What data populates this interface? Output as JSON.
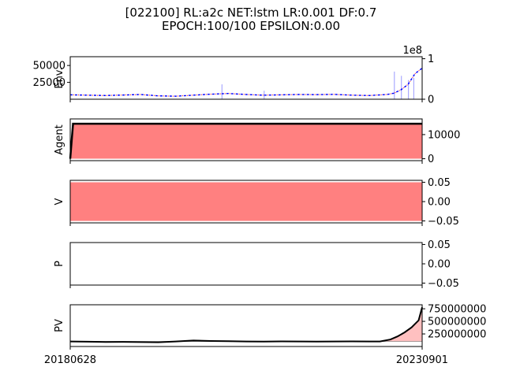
{
  "figure": {
    "title_line1": "[022100] RL:a2c NET:lstm LR:0.001 DF:0.7",
    "title_line2": "EPOCH:100/100 EPSILON:0.00",
    "x_tick_start": "20180628",
    "x_tick_end": "20230901"
  },
  "chart_data": [
    {
      "type": "line",
      "ylabel": "Env.",
      "yticks": [
        "25000",
        "50000"
      ],
      "ylim": [
        0,
        63000
      ],
      "secondary_axis": {
        "yticks": [
          "0",
          "1"
        ],
        "offset_label": "1e8",
        "ylim": [
          0,
          1.05
        ]
      },
      "x": [
        0,
        0.05,
        0.1,
        0.15,
        0.2,
        0.25,
        0.3,
        0.35,
        0.4,
        0.45,
        0.5,
        0.55,
        0.6,
        0.65,
        0.7,
        0.75,
        0.8,
        0.85,
        0.9,
        0.92,
        0.94,
        0.96,
        0.98,
        1.0
      ],
      "series": [
        {
          "values": [
            6500,
            6000,
            5500,
            6200,
            7000,
            5000,
            4500,
            6000,
            7500,
            8500,
            7000,
            6000,
            6500,
            7000,
            6800,
            7200,
            6000,
            5500,
            7000,
            9000,
            14000,
            22000,
            38000,
            46000
          ]
        }
      ],
      "volume_bars": [
        {
          "x": 0.43,
          "value": 0.35
        },
        {
          "x": 0.55,
          "value": 0.2
        },
        {
          "x": 0.92,
          "value": 0.65
        },
        {
          "x": 0.94,
          "value": 0.55
        },
        {
          "x": 0.96,
          "value": 0.45
        },
        {
          "x": 0.975,
          "value": 0.5
        }
      ],
      "colors": {
        "line": "#0000ff",
        "line_alt": "#ff0000",
        "volume": "#0000ff"
      }
    },
    {
      "type": "area",
      "ylabel": "Agent",
      "yticks": [
        "0",
        "10000"
      ],
      "ylim": [
        -800,
        16500
      ],
      "x": [
        0,
        0.008,
        1.0
      ],
      "series": [
        {
          "values": [
            0,
            14500,
            14500
          ]
        }
      ],
      "colors": {
        "fill": "#ff8080",
        "line": "#000000"
      }
    },
    {
      "type": "area",
      "ylabel": "V",
      "yticks": [
        "0.05",
        "0.00",
        "−0.05"
      ],
      "ylim": [
        -0.055,
        0.055
      ],
      "fill_range": [
        -0.05,
        0.05
      ],
      "colors": {
        "fill": "#ff8080"
      }
    },
    {
      "type": "line",
      "ylabel": "P",
      "yticks": [
        "0.05",
        "0.00",
        "−0.05"
      ],
      "ylim": [
        -0.055,
        0.055
      ]
    },
    {
      "type": "line",
      "ylabel": "PV",
      "yticks": [
        "750000000",
        "500000000",
        "250000000"
      ],
      "ylim": [
        0,
        830000000
      ],
      "baseline": 100000000,
      "x": [
        0,
        0.05,
        0.1,
        0.15,
        0.2,
        0.25,
        0.3,
        0.35,
        0.4,
        0.45,
        0.5,
        0.55,
        0.6,
        0.65,
        0.7,
        0.75,
        0.8,
        0.85,
        0.88,
        0.91,
        0.93,
        0.95,
        0.97,
        0.99,
        1.0
      ],
      "series": [
        {
          "values": [
            100000000,
            95000000,
            90000000,
            92000000,
            88000000,
            85000000,
            100000000,
            120000000,
            110000000,
            105000000,
            100000000,
            98000000,
            102000000,
            100000000,
            98000000,
            100000000,
            102000000,
            100000000,
            100000000,
            140000000,
            200000000,
            280000000,
            380000000,
            520000000,
            780000000
          ]
        }
      ],
      "colors": {
        "line": "#000000",
        "fill": "#ffb0b0"
      }
    }
  ]
}
